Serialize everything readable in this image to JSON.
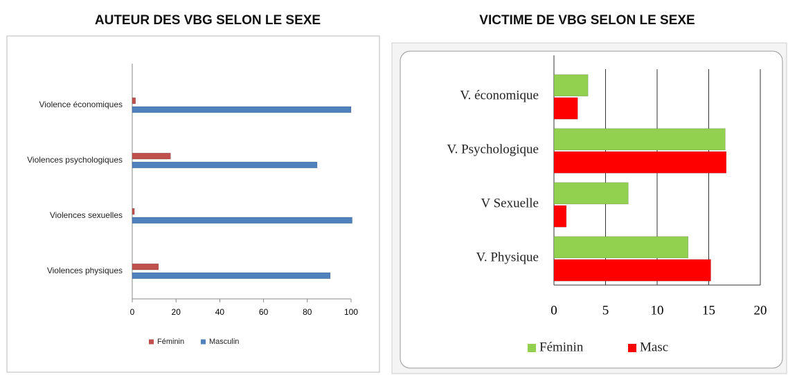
{
  "chart_data": [
    {
      "type": "bar",
      "orientation": "horizontal",
      "title": "AUTEUR DES VBG SELON LE SEXE",
      "categories": [
        "Violence économiques",
        "Violences psychologiques",
        "Violences sexuelles",
        "Violences physiques"
      ],
      "series": [
        {
          "name": "Féminin",
          "color": "#c0504d",
          "values": [
            1.5,
            17.5,
            1,
            12
          ]
        },
        {
          "name": "Masculin",
          "color": "#4f81bd",
          "values": [
            100,
            84.5,
            100.5,
            90.5
          ]
        }
      ],
      "xlim": [
        0,
        100
      ],
      "xticks": [
        0,
        20,
        40,
        60,
        80,
        100
      ],
      "grid": false,
      "legend": "bottom"
    },
    {
      "type": "bar",
      "orientation": "horizontal",
      "title": "VICTIME DE VBG SELON LE SEXE",
      "categories": [
        "V. économique",
        "V. Psychologique",
        "V Sexuelle",
        "V. Physique"
      ],
      "series": [
        {
          "name": "Féminin",
          "color": "#92d050",
          "values": [
            3.3,
            16.6,
            7.2,
            13
          ]
        },
        {
          "name": "Masc",
          "color": "#ff0000",
          "values": [
            2.3,
            16.7,
            1.2,
            15.2
          ]
        }
      ],
      "xlim": [
        0,
        20
      ],
      "xticks": [
        0,
        5,
        10,
        15,
        20
      ],
      "grid": true,
      "legend": "bottom"
    }
  ]
}
